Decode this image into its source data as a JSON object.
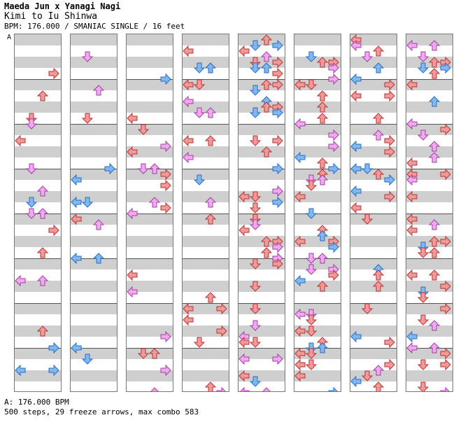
{
  "header": {
    "artist": "Maeda Jun x Yanagi Nagi",
    "song": "Kimi to Iu Shinwa",
    "chart_info": "BPM: 176.000 / SMANIAC SINGLE / 16 feet"
  },
  "bpm_marker": "A",
  "footer": {
    "bpm_legend": "A: 176.000 BPM",
    "stats": "500 steps, 29 freeze arrows, max combo 583"
  },
  "colors": {
    "quarter": "#f29a9a",
    "eighth": "#7fb8f5",
    "sixteenth": "#f2a8f2",
    "freeze": "#b9f0b0"
  }
}
